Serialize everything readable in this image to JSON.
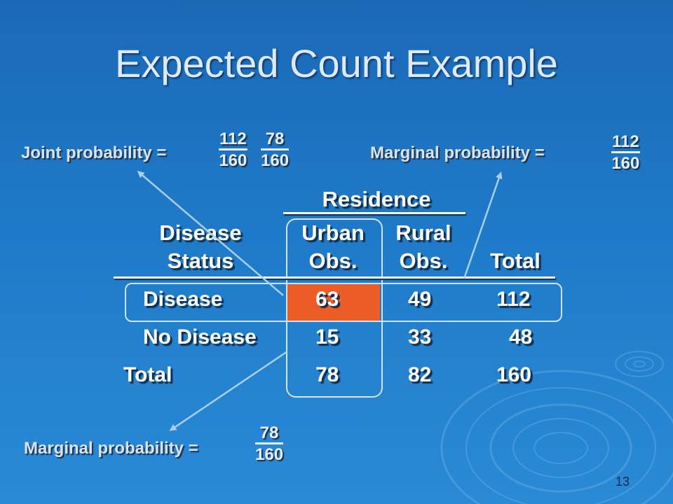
{
  "slide": {
    "title": "Expected Count Example",
    "page_number": "13"
  },
  "joint": {
    "label": "Joint probability =",
    "frac1": {
      "num": "112",
      "den": "160"
    },
    "frac2": {
      "num": "78",
      "den": "160"
    }
  },
  "marginal_top": {
    "label": "Marginal probability =",
    "frac": {
      "num": "112",
      "den": "160"
    }
  },
  "marginal_bottom": {
    "label": "Marginal probability =",
    "frac": {
      "num": "78",
      "den": "160"
    }
  },
  "table": {
    "group_header": "Residence",
    "col_disease_line1": "Disease",
    "col_disease_line2": "Status",
    "col_urban_line1": "Urban",
    "col_urban_line2": "Obs.",
    "col_rural_line1": "Rural",
    "col_rural_line2": "Obs.",
    "col_total": "Total",
    "rows": [
      {
        "label": "Disease",
        "urban": "63",
        "rural": "49",
        "total": "112"
      },
      {
        "label": "No Disease",
        "urban": "15",
        "rural": "33",
        "total": "48"
      },
      {
        "label": "Total",
        "urban": "78",
        "rural": "82",
        "total": "160"
      }
    ]
  },
  "colors": {
    "highlight": "#ec5c27",
    "background": "#1e7ac8",
    "arrow": "#a9cff0"
  }
}
